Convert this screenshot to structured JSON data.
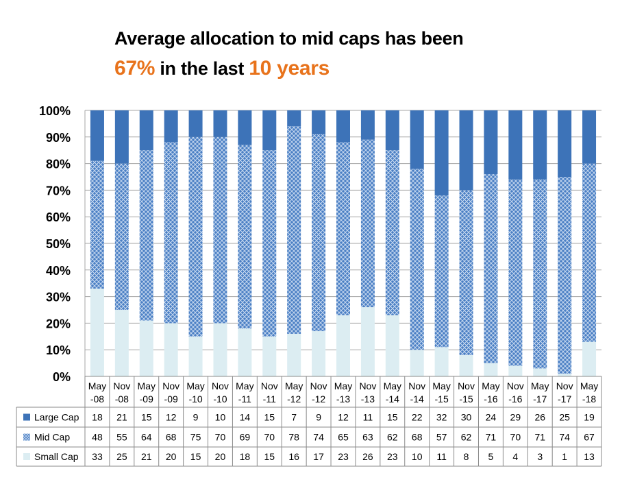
{
  "title": {
    "line1": "Average allocation to mid caps has been",
    "highlight_pct": "67%",
    "mid": " in the last ",
    "highlight_years": "10 years"
  },
  "colors": {
    "large": "#3d73b8",
    "mid": "#4a7fc4",
    "small": "#dcedf2",
    "accent": "#e8731c",
    "grid": "#a6a6a6"
  },
  "chart_data": {
    "type": "bar",
    "stacked": true,
    "percent": true,
    "categories": [
      "May\n-08",
      "Nov\n-08",
      "May\n-09",
      "Nov\n-09",
      "May\n-10",
      "Nov\n-10",
      "May\n-11",
      "Nov\n-11",
      "May\n-12",
      "Nov\n-12",
      "May\n-13",
      "Nov\n-13",
      "May\n-14",
      "Nov\n-14",
      "May\n-15",
      "Nov\n-15",
      "May\n-16",
      "Nov\n-16",
      "May\n-17",
      "Nov\n-17",
      "May\n-18"
    ],
    "series": [
      {
        "name": "Small Cap",
        "values": [
          33,
          25,
          21,
          20,
          15,
          20,
          18,
          15,
          16,
          17,
          23,
          26,
          23,
          10,
          11,
          8,
          5,
          4,
          3,
          1,
          13
        ]
      },
      {
        "name": "Mid Cap",
        "values": [
          48,
          55,
          64,
          68,
          75,
          70,
          69,
          70,
          78,
          74,
          65,
          63,
          62,
          68,
          57,
          62,
          71,
          70,
          71,
          74,
          67
        ]
      },
      {
        "name": "Large Cap",
        "values": [
          18,
          21,
          15,
          12,
          9,
          10,
          14,
          15,
          7,
          9,
          12,
          11,
          15,
          22,
          32,
          30,
          24,
          29,
          26,
          25,
          19
        ]
      }
    ],
    "ylim": [
      0,
      100
    ],
    "yticks": [
      "0%",
      "10%",
      "20%",
      "30%",
      "40%",
      "50%",
      "60%",
      "70%",
      "80%",
      "90%",
      "100%"
    ],
    "grid": true,
    "legend": "data-table"
  }
}
